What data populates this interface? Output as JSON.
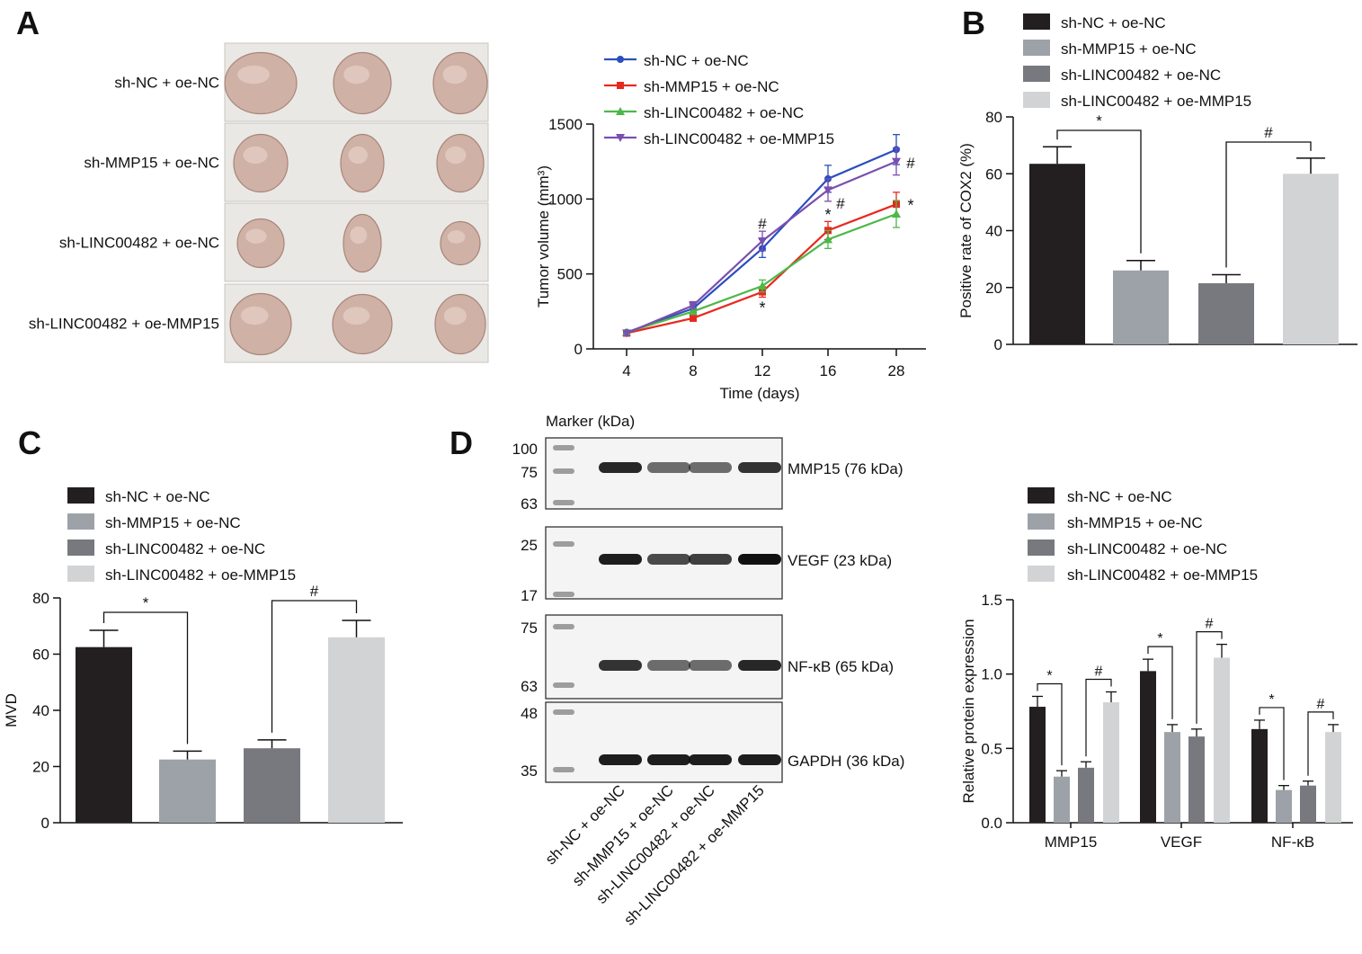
{
  "panels": {
    "A": {
      "letter": "A",
      "row_labels": [
        "sh-NC + oe-NC",
        "sh-MMP15 + oe-NC",
        "sh-LINC00482 + oe-NC",
        "sh-LINC00482 + oe-MMP15"
      ],
      "photo_colors": {
        "background": "#e9e8e4",
        "tumor": "#cfb1a6",
        "tumor_dark": "#a98579"
      }
    },
    "B": {
      "letter": "B"
    },
    "C": {
      "letter": "C"
    },
    "D": {
      "letter": "D",
      "marker_title": "Marker (kDa)",
      "blots": [
        {
          "label": "MMP15 (76 kDa)",
          "markers": [
            "100",
            "75",
            "63"
          ],
          "intensities": [
            0.9,
            0.6,
            0.6,
            0.85
          ]
        },
        {
          "label": "VEGF (23 kDa)",
          "markers": [
            "25",
            "17"
          ],
          "intensities": [
            0.95,
            0.75,
            0.8,
            1.0
          ]
        },
        {
          "label": "NF-κB (65 kDa)",
          "markers": [
            "75",
            "63"
          ],
          "intensities": [
            0.85,
            0.6,
            0.6,
            0.9
          ]
        },
        {
          "label": "GAPDH (36 kDa)",
          "markers": [
            "48",
            "35"
          ],
          "intensities": [
            0.95,
            0.95,
            0.95,
            0.95
          ]
        }
      ],
      "lane_labels": [
        "sh-NC + oe-NC",
        "sh-MMP15 + oe-NC",
        "sh-LINC00482 + oe-NC",
        "sh-LINC00482 + oe-MMP15"
      ]
    }
  },
  "colors": {
    "g1": "#231f20",
    "g2": "#9da1a8",
    "g3": "#77797e",
    "g4": "#d2d3d5",
    "line1": "#2a4fbd",
    "line2": "#e8281f",
    "line3": "#4cb848",
    "line4": "#7a4fb0"
  },
  "chart_data": [
    {
      "panel": "A",
      "type": "line",
      "x": [
        "4",
        "8",
        "12",
        "16",
        "28"
      ],
      "xlabel": "Time (days)",
      "ylabel": "Tumor volume (mm³)",
      "ylim": [
        0,
        1500
      ],
      "yticks": [
        "0",
        "500",
        "1000",
        "1500"
      ],
      "legend_position": "top",
      "series": [
        {
          "name": "sh-NC + oe-NC",
          "values": [
            110,
            270,
            670,
            1135,
            1330
          ],
          "errors": [
            15,
            25,
            60,
            90,
            100
          ],
          "marker": "circle"
        },
        {
          "name": "sh-MMP15 + oe-NC",
          "values": [
            105,
            205,
            380,
            790,
            965
          ],
          "errors": [
            12,
            20,
            35,
            60,
            80
          ],
          "marker": "square"
        },
        {
          "name": "sh-LINC00482 + oe-NC",
          "values": [
            110,
            250,
            420,
            730,
            900
          ],
          "errors": [
            12,
            20,
            40,
            60,
            90
          ],
          "marker": "triangle-up"
        },
        {
          "name": "sh-LINC00482 + oe-MMP15",
          "values": [
            105,
            290,
            720,
            1060,
            1250
          ],
          "errors": [
            15,
            25,
            65,
            75,
            90
          ],
          "marker": "triangle-down"
        }
      ],
      "annotations": [
        {
          "text": "#",
          "x": "12",
          "y": 850
        },
        {
          "text": "*",
          "x": "12",
          "y": 285
        },
        {
          "text": "*",
          "x": "16",
          "y": 905
        },
        {
          "text": "#",
          "x": "16",
          "y": 985
        },
        {
          "text": "#",
          "x": "28",
          "y": 1255
        },
        {
          "text": "*",
          "x": "28",
          "y": 970
        }
      ]
    },
    {
      "panel": "B",
      "type": "bar",
      "categories": [
        "sh-NC + oe-NC",
        "sh-MMP15 + oe-NC",
        "sh-LINC00482 + oe-NC",
        "sh-LINC00482 + oe-MMP15"
      ],
      "values": [
        63.5,
        26,
        21.5,
        60
      ],
      "errors": [
        6,
        3.5,
        3,
        5.5
      ],
      "ylabel": "Positive rate of COX2 (%)",
      "ylim": [
        0,
        80
      ],
      "yticks": [
        "0",
        "20",
        "40",
        "60",
        "80"
      ],
      "legend_position": "top",
      "significance": [
        {
          "from": 0,
          "to": 1,
          "symbol": "*"
        },
        {
          "from": 2,
          "to": 3,
          "symbol": "#"
        }
      ]
    },
    {
      "panel": "C",
      "type": "bar",
      "categories": [
        "sh-NC + oe-NC",
        "sh-MMP15 + oe-NC",
        "sh-LINC00482 + oe-NC",
        "sh-LINC00482 + oe-MMP15"
      ],
      "values": [
        62.5,
        22.5,
        26.5,
        66
      ],
      "errors": [
        6,
        3,
        3,
        6
      ],
      "ylabel": "MVD",
      "ylim": [
        0,
        80
      ],
      "yticks": [
        "0",
        "20",
        "40",
        "60",
        "80"
      ],
      "legend_position": "top",
      "significance": [
        {
          "from": 0,
          "to": 1,
          "symbol": "*"
        },
        {
          "from": 2,
          "to": 3,
          "symbol": "#"
        }
      ]
    },
    {
      "panel": "D",
      "type": "bar",
      "categories": [
        "MMP15",
        "VEGF",
        "NF-κB"
      ],
      "ylabel": "Relative protein expression",
      "ylim": [
        0,
        1.5
      ],
      "yticks": [
        "0.0",
        "0.5",
        "1.0",
        "1.5"
      ],
      "legend_position": "top",
      "series": [
        {
          "name": "sh-NC + oe-NC",
          "values": [
            0.78,
            1.02,
            0.63
          ],
          "errors": [
            0.07,
            0.08,
            0.06
          ]
        },
        {
          "name": "sh-MMP15 + oe-NC",
          "values": [
            0.31,
            0.61,
            0.22
          ],
          "errors": [
            0.04,
            0.05,
            0.03
          ]
        },
        {
          "name": "sh-LINC00482 + oe-NC",
          "values": [
            0.37,
            0.58,
            0.25
          ],
          "errors": [
            0.04,
            0.05,
            0.03
          ]
        },
        {
          "name": "sh-LINC00482 + oe-MMP15",
          "values": [
            0.81,
            1.11,
            0.61
          ],
          "errors": [
            0.07,
            0.09,
            0.05
          ]
        }
      ],
      "significance": [
        {
          "group": 0,
          "from": 0,
          "to": 1,
          "symbol": "*"
        },
        {
          "group": 0,
          "from": 2,
          "to": 3,
          "symbol": "#"
        },
        {
          "group": 1,
          "from": 0,
          "to": 1,
          "symbol": "*"
        },
        {
          "group": 1,
          "from": 2,
          "to": 3,
          "symbol": "#"
        },
        {
          "group": 2,
          "from": 0,
          "to": 1,
          "symbol": "*"
        },
        {
          "group": 2,
          "from": 2,
          "to": 3,
          "symbol": "#"
        }
      ]
    }
  ]
}
